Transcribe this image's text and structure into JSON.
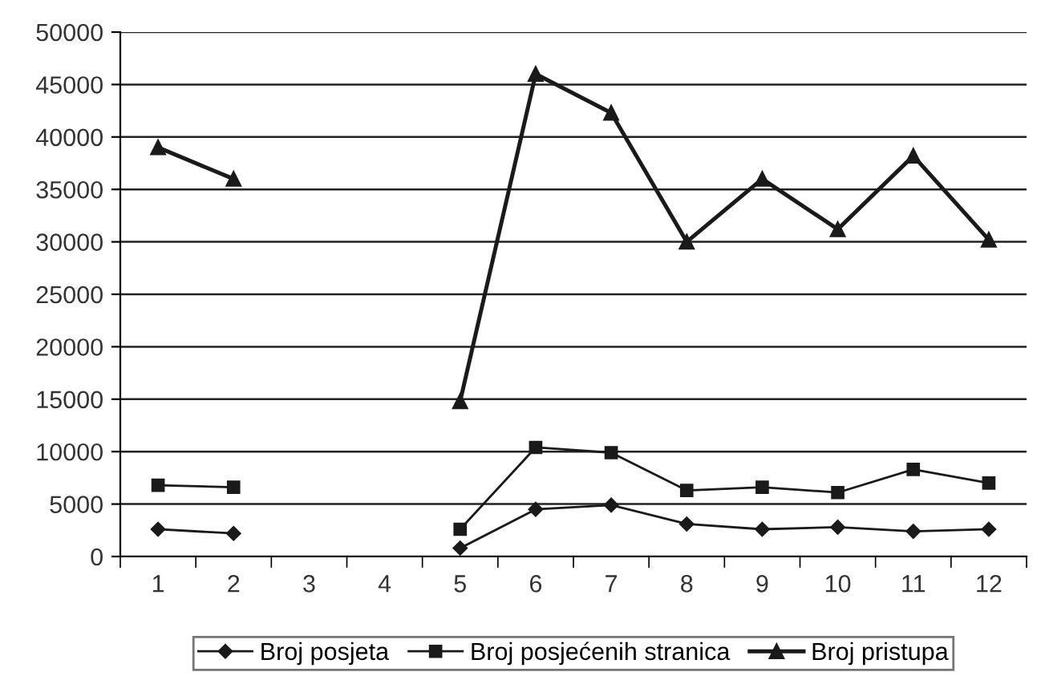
{
  "chart_data": {
    "type": "line",
    "categories": [
      "1",
      "2",
      "3",
      "4",
      "5",
      "6",
      "7",
      "8",
      "9",
      "10",
      "11",
      "12"
    ],
    "series": [
      {
        "name": "Broj posjeta",
        "color": "#1a1a1a",
        "marker": "diamond",
        "values": [
          2600,
          2200,
          null,
          null,
          800,
          4500,
          4900,
          3100,
          2600,
          2800,
          2400,
          2600
        ]
      },
      {
        "name": "Broj posjećenih stranica",
        "color": "#1a1a1a",
        "marker": "square",
        "values": [
          6800,
          6600,
          null,
          null,
          2600,
          10400,
          9900,
          6300,
          6600,
          6100,
          8300,
          7000
        ]
      },
      {
        "name": "Broj pristupa",
        "color": "#1a1a1a",
        "marker": "triangle",
        "values": [
          39000,
          36000,
          null,
          null,
          14800,
          46000,
          42300,
          30000,
          36000,
          31200,
          38200,
          30200
        ]
      }
    ],
    "ylim": [
      0,
      50000
    ],
    "yticks": [
      0,
      5000,
      10000,
      15000,
      20000,
      25000,
      30000,
      35000,
      40000,
      45000,
      50000
    ],
    "grid": "y",
    "legend": "bottom",
    "line_style": "solid"
  }
}
